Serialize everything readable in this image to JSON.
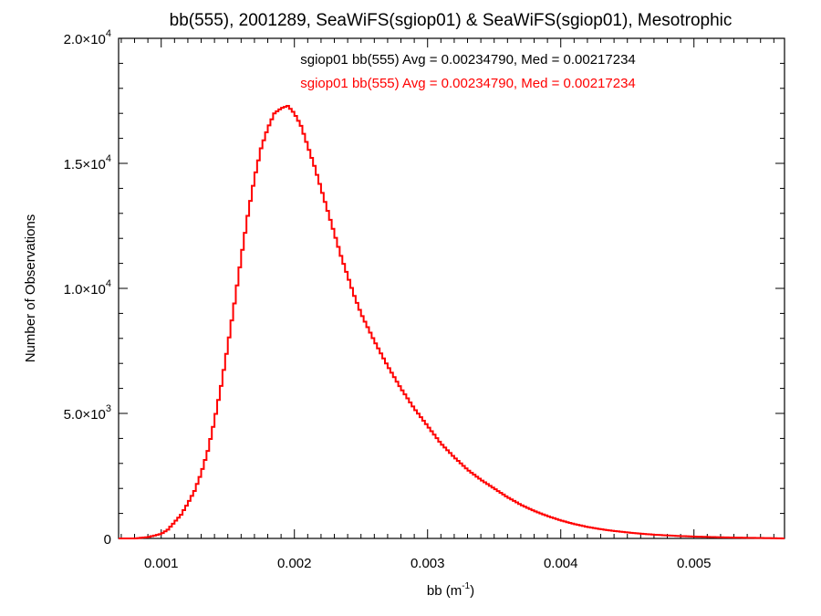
{
  "chart_data": {
    "type": "histogram-step",
    "title": "bb(555), 2001289, SeaWiFS(sgiop01) & SeaWiFS(sgiop01), Mesotrophic",
    "xlabel": "bb (m",
    "xlabel_exponent": "-1",
    "xlabel_suffix": ")",
    "ylabel": "Number of Observations",
    "xlim": [
      0.00068,
      0.00568
    ],
    "ylim": [
      0,
      20000
    ],
    "xticks": [
      {
        "value": 0.001,
        "label": "0.001"
      },
      {
        "value": 0.002,
        "label": "0.002"
      },
      {
        "value": 0.003,
        "label": "0.003"
      },
      {
        "value": 0.004,
        "label": "0.004"
      },
      {
        "value": 0.005,
        "label": "0.005"
      }
    ],
    "yticks": [
      {
        "value": 0,
        "mantissa": "0",
        "exponent": ""
      },
      {
        "value": 5000,
        "mantissa": "5.0×10",
        "exponent": "3"
      },
      {
        "value": 10000,
        "mantissa": "1.0×10",
        "exponent": "4"
      },
      {
        "value": 15000,
        "mantissa": "1.5×10",
        "exponent": "4"
      },
      {
        "value": 20000,
        "mantissa": "2.0×10",
        "exponent": "4"
      }
    ],
    "annotations": [
      {
        "text": "sgiop01 bb(555) Avg = 0.00234790, Med = 0.00217234",
        "color": "#000000"
      },
      {
        "text": "sgiop01 bb(555) Avg = 0.00234790, Med = 0.00217234",
        "color": "#ff0000"
      }
    ],
    "series": [
      {
        "color": "#ff0000",
        "x": [
          0.0007,
          0.0008,
          0.0009,
          0.001,
          0.00105,
          0.0011,
          0.00115,
          0.0012,
          0.00125,
          0.0013,
          0.00135,
          0.0014,
          0.00145,
          0.0015,
          0.00155,
          0.0016,
          0.00165,
          0.0017,
          0.00175,
          0.0018,
          0.00185,
          0.0019,
          0.00195,
          0.002,
          0.00205,
          0.0021,
          0.00215,
          0.0022,
          0.00225,
          0.0023,
          0.00235,
          0.0024,
          0.00245,
          0.0025,
          0.0026,
          0.0027,
          0.0028,
          0.0029,
          0.003,
          0.0031,
          0.0032,
          0.0033,
          0.0034,
          0.0035,
          0.0036,
          0.0037,
          0.0038,
          0.0039,
          0.004,
          0.0041,
          0.0042,
          0.0043,
          0.0044,
          0.0045,
          0.0046,
          0.0047,
          0.0048,
          0.0049,
          0.005,
          0.0052,
          0.0054,
          0.0056,
          0.00568
        ],
        "y": [
          0,
          0,
          50,
          180,
          350,
          650,
          950,
          1400,
          1900,
          2600,
          3500,
          4700,
          6100,
          7700,
          9400,
          11200,
          12900,
          14400,
          15600,
          16400,
          17000,
          17200,
          17300,
          17000,
          16500,
          15700,
          14900,
          14000,
          13100,
          12200,
          11300,
          10500,
          9700,
          9000,
          7900,
          6900,
          6000,
          5200,
          4500,
          3800,
          3250,
          2750,
          2350,
          2000,
          1650,
          1350,
          1100,
          900,
          720,
          580,
          460,
          370,
          300,
          240,
          190,
          150,
          120,
          95,
          75,
          45,
          25,
          10,
          0
        ]
      }
    ]
  }
}
